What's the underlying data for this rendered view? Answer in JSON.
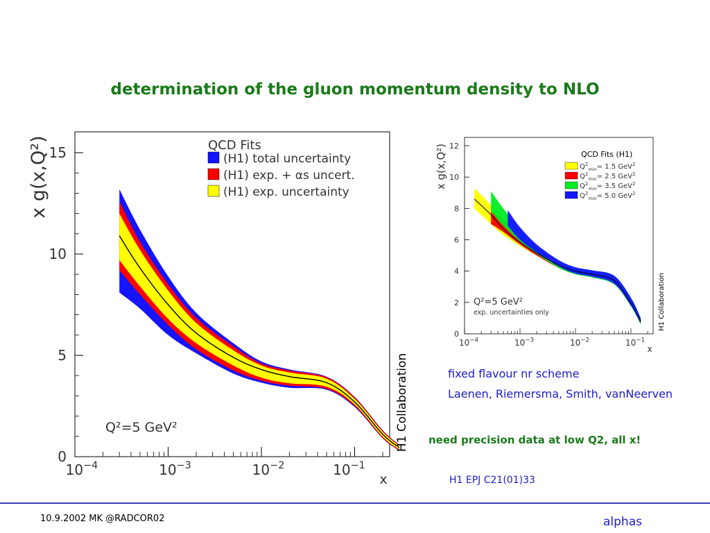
{
  "title": "determination of the gluon momentum density to NLO",
  "colors": {
    "title": "#1a7a1a",
    "notes": "#1c1ccc",
    "band_blue": "#1414ff",
    "band_red": "#ff0000",
    "band_yellow": "#ffff00",
    "band_green": "#00ee22"
  },
  "chart_data": [
    {
      "type": "area",
      "title": "QCD Fits",
      "xlabel": "x",
      "ylabel": "x g(x,Q²)",
      "xscale": "log",
      "xlim": [
        0.0001,
        0.35
      ],
      "ylim": [
        0,
        16
      ],
      "xticks": [
        "10^-4",
        "10^-3",
        "10^-2",
        "10^-1"
      ],
      "yticks": [
        "0",
        "5",
        "10",
        "15"
      ],
      "annotation": "Q²=5 GeV²",
      "side_label": "H1 Collaboration",
      "legend_position": "top-right",
      "x": [
        0.0003,
        0.0005,
        0.001,
        0.002,
        0.005,
        0.01,
        0.02,
        0.05,
        0.1,
        0.2,
        0.3
      ],
      "central": [
        10.9,
        9.3,
        7.5,
        6.1,
        4.9,
        4.3,
        3.95,
        3.65,
        2.7,
        1.1,
        0.45
      ],
      "series": [
        {
          "name": "(H1) total uncertainty",
          "color": "#1414ff",
          "upper": [
            13.2,
            11.2,
            8.9,
            7.1,
            5.6,
            4.7,
            4.3,
            3.95,
            2.95,
            1.3,
            0.6
          ],
          "lower": [
            8.1,
            7.3,
            6.0,
            5.1,
            4.1,
            3.65,
            3.4,
            3.3,
            2.45,
            0.9,
            0.3
          ]
        },
        {
          "name": "(H1) exp. + αs uncert.",
          "color": "#ff0000",
          "upper": [
            12.6,
            10.6,
            8.5,
            6.85,
            5.45,
            4.6,
            4.25,
            3.92,
            2.92,
            1.28,
            0.58
          ],
          "lower": [
            9.2,
            8.0,
            6.5,
            5.3,
            4.25,
            3.75,
            3.5,
            3.35,
            2.5,
            0.92,
            0.32
          ]
        },
        {
          "name": "(H1) exp. uncertainty",
          "color": "#ffff00",
          "upper": [
            12.0,
            10.2,
            8.2,
            6.6,
            5.25,
            4.5,
            4.15,
            3.85,
            2.85,
            1.22,
            0.54
          ],
          "lower": [
            9.7,
            8.4,
            6.8,
            5.6,
            4.5,
            3.9,
            3.62,
            3.45,
            2.58,
            0.98,
            0.36
          ]
        }
      ]
    },
    {
      "type": "area",
      "title": "QCD Fits (H1)",
      "xlabel": "x",
      "ylabel": "x g(x,Q²)",
      "xscale": "log",
      "xlim": [
        0.0001,
        0.15
      ],
      "ylim": [
        0,
        12.5
      ],
      "xticks": [
        "10^-4",
        "10^-3",
        "10^-2",
        "10^-1"
      ],
      "yticks": [
        "0",
        "2",
        "4",
        "6",
        "8",
        "10",
        "12"
      ],
      "annotation": "Q²=5 GeV²",
      "annotation2": "exp. uncertainties only",
      "side_label": "H1 Collaboration",
      "legend_position": "top-right",
      "series": [
        {
          "name": "Q²min=  1.5 GeV²",
          "label_main": "Q",
          "label_sup": "2",
          "label_sub": "min",
          "label_rest": "=  1.5 GeV",
          "label_sup2": "2",
          "color": "#ffff00",
          "x": [
            0.00015,
            0.0003,
            0.0005,
            0.001,
            0.002,
            0.005,
            0.01,
            0.02,
            0.05,
            0.1,
            0.15
          ],
          "upper": [
            9.3,
            8.2,
            7.1,
            6.1,
            5.3,
            4.5,
            4.1,
            3.9,
            3.5,
            2.1,
            0.9
          ],
          "lower": [
            8.0,
            7.0,
            6.3,
            5.6,
            5.0,
            4.25,
            3.9,
            3.7,
            3.3,
            1.8,
            0.7
          ],
          "central": [
            8.6,
            7.6,
            6.7,
            5.85,
            5.15,
            4.38,
            4.0,
            3.8,
            3.4,
            1.95,
            0.8
          ]
        },
        {
          "name": "Q²min=  2.5 GeV²",
          "label_main": "Q",
          "label_sup": "2",
          "label_sub": "min",
          "label_rest": "=  2.5 GeV",
          "label_sup2": "2",
          "color": "#ff0000",
          "x": [
            0.0003,
            0.0005,
            0.001,
            0.002,
            0.005,
            0.01,
            0.02,
            0.05,
            0.1,
            0.15
          ],
          "upper": [
            7.8,
            7.3,
            6.3,
            5.4,
            4.55,
            4.15,
            3.95,
            3.55,
            2.15,
            0.95
          ],
          "lower": [
            7.0,
            6.5,
            5.7,
            5.0,
            4.2,
            3.85,
            3.65,
            3.25,
            1.8,
            0.7
          ]
        },
        {
          "name": "Q²min=  3.5 GeV²",
          "label_main": "Q",
          "label_sup": "2",
          "label_sub": "min",
          "label_rest": "=  3.5 GeV",
          "label_sup2": "2",
          "color": "#00ee22",
          "x": [
            0.0003,
            0.0005,
            0.001,
            0.002,
            0.005,
            0.01,
            0.02,
            0.05,
            0.1,
            0.15
          ],
          "upper": [
            9.1,
            8.0,
            6.7,
            5.6,
            4.6,
            4.2,
            4.05,
            3.7,
            2.3,
            1.0
          ],
          "lower": [
            7.8,
            6.9,
            5.9,
            5.1,
            4.2,
            3.8,
            3.6,
            3.15,
            1.75,
            0.6
          ]
        },
        {
          "name": "Q²min=  5.0 GeV²",
          "label_main": "Q",
          "label_sup": "2",
          "label_sub": "min",
          "label_rest": "=  5.0 GeV",
          "label_sup2": "2",
          "color": "#1414ff",
          "x": [
            0.0006,
            0.001,
            0.002,
            0.005,
            0.01,
            0.02,
            0.05,
            0.1,
            0.15
          ],
          "upper": [
            7.9,
            6.8,
            5.7,
            4.7,
            4.25,
            4.05,
            3.7,
            2.3,
            1.0
          ],
          "lower": [
            6.9,
            6.0,
            5.2,
            4.3,
            3.85,
            3.65,
            3.2,
            1.8,
            0.65
          ]
        }
      ]
    }
  ],
  "notes": {
    "line1": "fixed flavour nr scheme",
    "line2": "Laenen, Riemersma, Smith, vanNeerven",
    "line3": "need precision data at low Q2, all x!",
    "ref": "H1 EPJ C21(01)33"
  },
  "footer": {
    "left": "10.9.2002 MK @RADCOR02",
    "right": "alphas"
  }
}
